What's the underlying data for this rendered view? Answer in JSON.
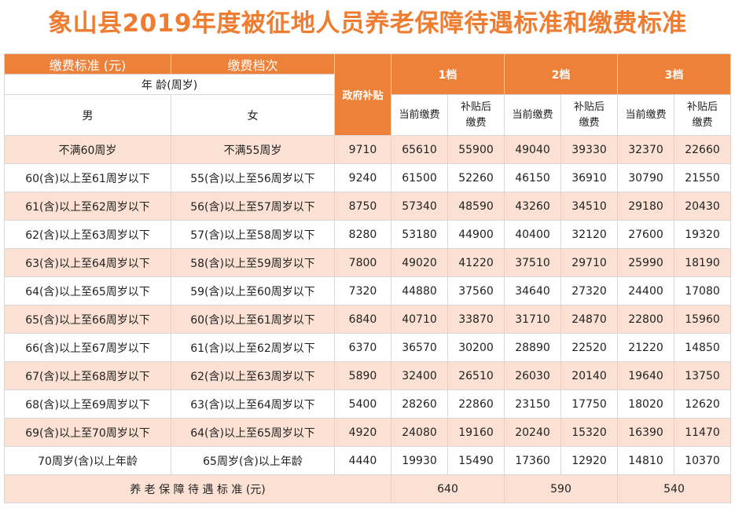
{
  "title": "象山县2019年度被征地人员养老保障待遇标准和缴费标准",
  "header": {
    "standard": "缴费标准 (元)",
    "grade": "缴费档次",
    "age": "年 龄(周岁)",
    "male": "男",
    "female": "女",
    "subsidy": "政府补贴",
    "tiers": [
      "1档",
      "2档",
      "3档"
    ],
    "current": "当前缴费",
    "after": "补贴后缴费"
  },
  "rows": [
    [
      "不满60周岁",
      "不满55周岁",
      9710,
      65610,
      55900,
      49040,
      39330,
      32370,
      22660
    ],
    [
      "60(含)以上至61周岁以下",
      "55(含)以上至56周岁以下",
      9240,
      61500,
      52260,
      46150,
      36910,
      30790,
      21550
    ],
    [
      "61(含)以上至62周岁以下",
      "56(含)以上至57周岁以下",
      8750,
      57340,
      48590,
      43260,
      34510,
      29180,
      20430
    ],
    [
      "62(含)以上至63周岁以下",
      "57(含)以上至58周岁以下",
      8280,
      53180,
      44900,
      40400,
      32120,
      27600,
      19320
    ],
    [
      "63(含)以上至64周岁以下",
      "58(含)以上至59周岁以下",
      7800,
      49020,
      41220,
      37510,
      29710,
      25990,
      18190
    ],
    [
      "64(含)以上至65周岁以下",
      "59(含)以上至60周岁以下",
      7320,
      44880,
      37560,
      34640,
      27320,
      24400,
      17080
    ],
    [
      "65(含)以上至66周岁以下",
      "60(含)以上至61周岁以下",
      6840,
      40710,
      33870,
      31710,
      24870,
      22800,
      15960
    ],
    [
      "66(含)以上至67周岁以下",
      "61(含)以上至62周岁以下",
      6370,
      36570,
      30200,
      28890,
      22520,
      21220,
      14850
    ],
    [
      "67(含)以上至68周岁以下",
      "62(含)以上至63周岁以下",
      5890,
      32400,
      26510,
      26030,
      20140,
      19640,
      13750
    ],
    [
      "68(含)以上至69周岁以下",
      "63(含)以上至64周岁以下",
      5400,
      28260,
      22860,
      23150,
      17750,
      18020,
      12620
    ],
    [
      "69(含)以上至70周岁以下",
      "64(含)以上至65周岁以下",
      4920,
      24080,
      19160,
      20240,
      15320,
      16390,
      11470
    ],
    [
      "70周岁(含)以上年龄",
      "65周岁(含)以上年龄",
      4440,
      19930,
      15490,
      17360,
      12920,
      14810,
      10370
    ]
  ],
  "footer": {
    "label": "养 老 保 障 待 遇 标 准 (元)",
    "values": [
      640,
      590,
      540
    ]
  }
}
